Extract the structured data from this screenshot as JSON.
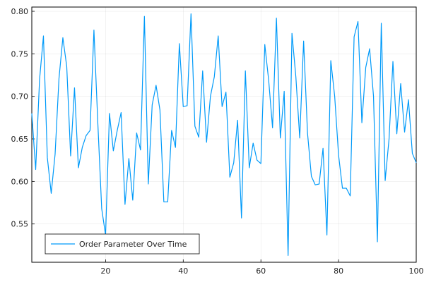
{
  "chart_data": {
    "type": "line",
    "title": "",
    "xlabel": "",
    "ylabel": "",
    "xlim": [
      1,
      100
    ],
    "ylim": [
      0.505,
      0.805
    ],
    "x_ticks": [
      20,
      40,
      60,
      80,
      100
    ],
    "y_ticks": [
      0.55,
      0.6,
      0.65,
      0.7,
      0.75,
      0.8
    ],
    "x_tick_labels": [
      "20",
      "40",
      "60",
      "80",
      "100"
    ],
    "y_tick_labels": [
      "0.55",
      "0.60",
      "0.65",
      "0.70",
      "0.75",
      "0.80"
    ],
    "grid": true,
    "legend_position": "bottom-left",
    "series": [
      {
        "name": "Order Parameter Over Time",
        "color": "#009af9",
        "x": [
          1,
          2,
          3,
          4,
          5,
          6,
          7,
          8,
          9,
          10,
          11,
          12,
          13,
          14,
          15,
          16,
          17,
          18,
          19,
          20,
          21,
          22,
          23,
          24,
          25,
          26,
          27,
          28,
          29,
          30,
          31,
          32,
          33,
          34,
          35,
          36,
          37,
          38,
          39,
          40,
          41,
          42,
          43,
          44,
          45,
          46,
          47,
          48,
          49,
          50,
          51,
          52,
          53,
          54,
          55,
          56,
          57,
          58,
          59,
          60,
          61,
          62,
          63,
          64,
          65,
          66,
          67,
          68,
          69,
          70,
          71,
          72,
          73,
          74,
          75,
          76,
          77,
          78,
          79,
          80,
          81,
          82,
          83,
          84,
          85,
          86,
          87,
          88,
          89,
          90,
          91,
          92,
          93,
          94,
          95,
          96,
          97,
          98,
          99,
          100
        ],
        "values": [
          0.68,
          0.614,
          0.72,
          0.771,
          0.628,
          0.586,
          0.632,
          0.721,
          0.769,
          0.735,
          0.63,
          0.71,
          0.616,
          0.64,
          0.654,
          0.66,
          0.778,
          0.669,
          0.568,
          0.537,
          0.68,
          0.636,
          0.66,
          0.681,
          0.573,
          0.627,
          0.578,
          0.657,
          0.637,
          0.794,
          0.597,
          0.69,
          0.713,
          0.684,
          0.576,
          0.576,
          0.66,
          0.64,
          0.762,
          0.688,
          0.689,
          0.797,
          0.665,
          0.652,
          0.73,
          0.646,
          0.7,
          0.723,
          0.771,
          0.688,
          0.705,
          0.605,
          0.622,
          0.672,
          0.557,
          0.73,
          0.616,
          0.645,
          0.625,
          0.621,
          0.761,
          0.719,
          0.663,
          0.792,
          0.651,
          0.706,
          0.513,
          0.774,
          0.723,
          0.651,
          0.765,
          0.657,
          0.606,
          0.596,
          0.597,
          0.639,
          0.537,
          0.742,
          0.7,
          0.631,
          0.592,
          0.592,
          0.583,
          0.77,
          0.788,
          0.669,
          0.734,
          0.756,
          0.7,
          0.529,
          0.786,
          0.601,
          0.65,
          0.741,
          0.656,
          0.715,
          0.658,
          0.696,
          0.633,
          0.622
        ]
      }
    ]
  }
}
